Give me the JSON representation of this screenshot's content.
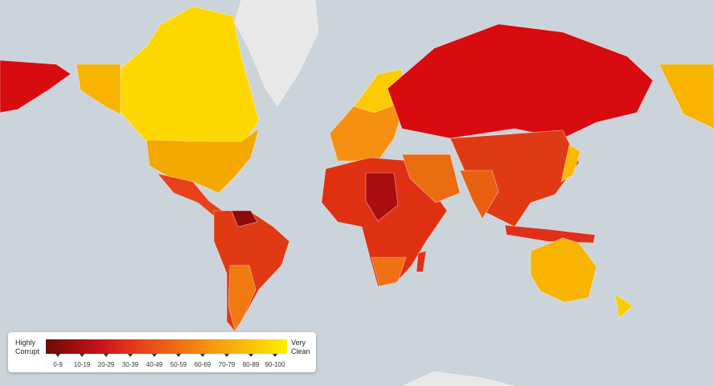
{
  "legend": {
    "low_label": "Highly Corrupt",
    "high_label": "Very Clean",
    "ranges": [
      "0-9",
      "10-19",
      "20-29",
      "30-39",
      "40-49",
      "50-59",
      "60-69",
      "70-79",
      "80-89",
      "90-100"
    ],
    "colors": [
      "#6e0a0a",
      "#9c0d0d",
      "#c8121a",
      "#e0301a",
      "#ea501a",
      "#f07014",
      "#f59010",
      "#f8b00a",
      "#fbcc05",
      "#ffee00"
    ]
  }
}
